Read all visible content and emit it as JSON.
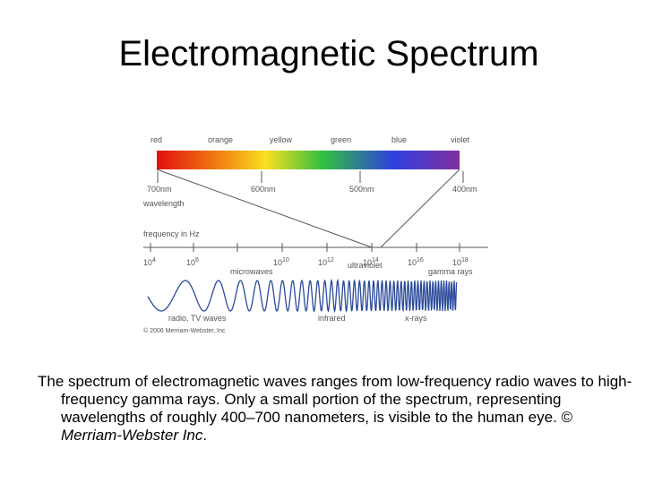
{
  "title": "Electromagnetic Spectrum",
  "diagram": {
    "colors": [
      "red",
      "orange",
      "yellow",
      "green",
      "blue",
      "violet"
    ],
    "wavelengths": [
      "700nm",
      "600nm",
      "500nm",
      "400nm"
    ],
    "wavelength_label": "wavelength",
    "frequency_label": "frequency in Hz",
    "frequencies": [
      {
        "base": "10",
        "exp": "4"
      },
      {
        "base": "10",
        "exp": "6"
      },
      {
        "base": "10",
        "exp": "10"
      },
      {
        "base": "10",
        "exp": "12"
      },
      {
        "base": "10",
        "exp": "14"
      },
      {
        "base": "10",
        "exp": "16"
      },
      {
        "base": "10",
        "exp": "18"
      }
    ],
    "bands_upper": [
      "microwaves",
      "ultraviolet",
      "gamma rays"
    ],
    "bands_lower": [
      "radio, TV waves",
      "infrared",
      "x-rays"
    ],
    "copyright": "© 2006 Merriam-Webster, Inc"
  },
  "caption": {
    "text": "The spectrum of electromagnetic waves ranges from low-frequency radio waves to high-frequency gamma rays. Only a small portion of the spectrum, representing wavelengths of roughly 400–700 nanometers, is visible to the human eye. © ",
    "italic": "Merriam-Webster Inc",
    "end": "."
  }
}
